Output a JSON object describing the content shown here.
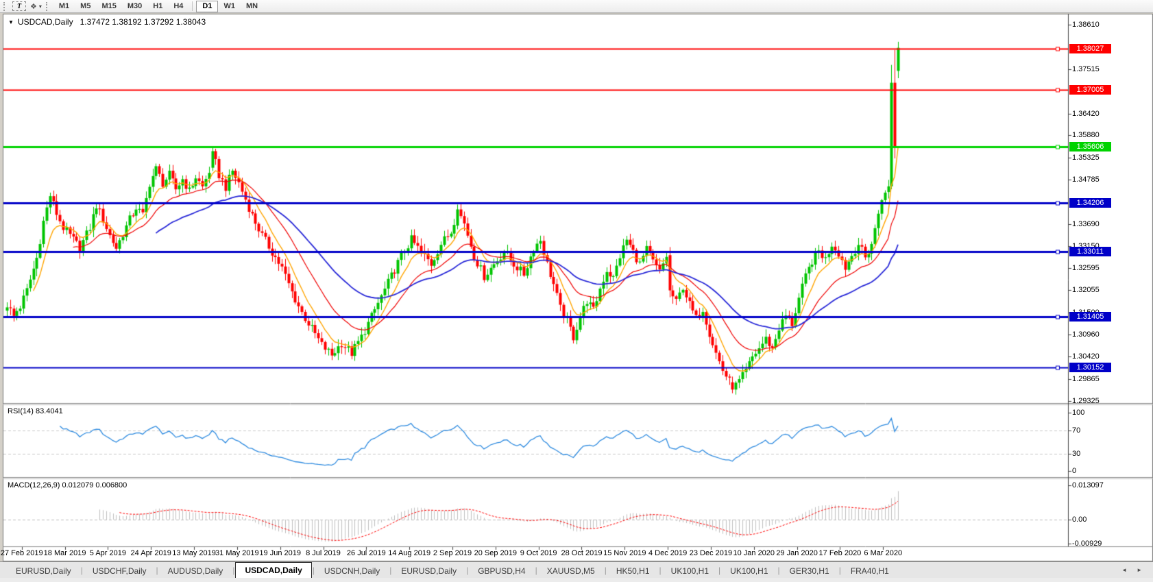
{
  "toolbar": {
    "text_tool": "T",
    "style_tool_icon": "❖",
    "style_tool_caret": "▾",
    "timeframes": [
      "M1",
      "M5",
      "M15",
      "M30",
      "H1",
      "H4",
      "|",
      "D1",
      "W1",
      "MN"
    ],
    "active_timeframe": "D1"
  },
  "window": {
    "menu_icon": "▼",
    "title_symbol": "USDCAD,Daily",
    "title_ohlc": "1.37472 1.38192 1.37292 1.38043"
  },
  "indicators": {
    "rsi_label": "RSI(14) 83.4041",
    "macd_label": "MACD(12,26,9) 0.012079 0.006800"
  },
  "tabs": {
    "items": [
      "EURUSD,Daily",
      "USDCHF,Daily",
      "AUDUSD,Daily",
      "USDCAD,Daily",
      "USDCNH,Daily",
      "EURUSD,Daily",
      "GBPUSD,H4",
      "XAUUSD,M5",
      "HK50,H1",
      "UK100,H1",
      "UK100,H1",
      "GER30,H1",
      "FRA40,H1"
    ],
    "active_index": 3,
    "scroll_left_icon": "◄",
    "scroll_right_icon": "►"
  },
  "chart_data": {
    "type": "candlestick",
    "symbol": "USDCAD",
    "period": "Daily",
    "candles_count": 270,
    "last_candle": {
      "open": 1.37472,
      "high": 1.38192,
      "low": 1.37292,
      "close": 1.38043
    },
    "price_range": [
      1.293,
      1.388
    ],
    "price_axis_ticks": [
      "1.38610",
      "1.37515",
      "1.36420",
      "1.35880",
      "1.35325",
      "1.34785",
      "1.33690",
      "1.33150",
      "1.32595",
      "1.32055",
      "1.31500",
      "1.30960",
      "1.30420",
      "1.29865",
      "1.29325"
    ],
    "levels": [
      {
        "price": 1.38027,
        "label": "1.38027",
        "color": "#FF0000",
        "width": 2
      },
      {
        "price": 1.37005,
        "label": "1.37005",
        "color": "#FF0000",
        "width": 2
      },
      {
        "price": 1.35606,
        "label": "1.35606",
        "color": "#00D300",
        "width": 3
      },
      {
        "price": 1.34206,
        "label": "1.34206",
        "color": "#0000C8",
        "width": 3
      },
      {
        "price": 1.33011,
        "label": "1.33011",
        "color": "#0000C8",
        "width": 3
      },
      {
        "price": 1.31405,
        "label": "1.31405",
        "color": "#0000C8",
        "width": 3
      },
      {
        "price": 1.30152,
        "label": "1.30152",
        "color": "#0000C8",
        "width": 2
      }
    ],
    "date_ticks": [
      "27 Feb 2019",
      "18 Mar 2019",
      "5 Apr 2019",
      "24 Apr 2019",
      "13 May 2019",
      "31 May 2019",
      "19 Jun 2019",
      "8 Jul 2019",
      "26 Jul 2019",
      "14 Aug 2019",
      "2 Sep 2019",
      "20 Sep 2019",
      "9 Oct 2019",
      "28 Oct 2019",
      "15 Nov 2019",
      "4 Dec 2019",
      "23 Dec 2019",
      "10 Jan 2020",
      "29 Jan 2020",
      "17 Feb 2020",
      "6 Mar 2020"
    ],
    "close_anchors": [
      [
        0,
        1.317
      ],
      [
        2,
        1.3145
      ],
      [
        4,
        1.3165
      ],
      [
        6,
        1.3205
      ],
      [
        9,
        1.3285
      ],
      [
        10,
        1.333
      ],
      [
        11,
        1.3375
      ],
      [
        13,
        1.344
      ],
      [
        15,
        1.3395
      ],
      [
        17,
        1.336
      ],
      [
        19,
        1.334
      ],
      [
        22,
        1.331
      ],
      [
        25,
        1.336
      ],
      [
        27,
        1.3415
      ],
      [
        29,
        1.338
      ],
      [
        31,
        1.334
      ],
      [
        33,
        1.331
      ],
      [
        35,
        1.3345
      ],
      [
        37,
        1.338
      ],
      [
        39,
        1.341
      ],
      [
        41,
        1.339
      ],
      [
        43,
        1.347
      ],
      [
        45,
        1.3505
      ],
      [
        47,
        1.347
      ],
      [
        49,
        1.349
      ],
      [
        51,
        1.3455
      ],
      [
        53,
        1.348
      ],
      [
        55,
        1.345
      ],
      [
        57,
        1.3485
      ],
      [
        59,
        1.346
      ],
      [
        61,
        1.35
      ],
      [
        62,
        1.3549
      ],
      [
        64,
        1.349
      ],
      [
        66,
        1.346
      ],
      [
        68,
        1.35
      ],
      [
        70,
        1.347
      ],
      [
        72,
        1.343
      ],
      [
        74,
        1.339
      ],
      [
        77,
        1.334
      ],
      [
        80,
        1.33
      ],
      [
        83,
        1.326
      ],
      [
        86,
        1.32
      ],
      [
        89,
        1.315
      ],
      [
        92,
        1.311
      ],
      [
        95,
        1.307
      ],
      [
        98,
        1.3045
      ],
      [
        101,
        1.3075
      ],
      [
        104,
        1.305
      ],
      [
        107,
        1.309
      ],
      [
        110,
        1.314
      ],
      [
        113,
        1.319
      ],
      [
        116,
        1.324
      ],
      [
        119,
        1.329
      ],
      [
        122,
        1.333
      ],
      [
        125,
        1.33
      ],
      [
        128,
        1.327
      ],
      [
        131,
        1.332
      ],
      [
        134,
        1.335
      ],
      [
        136,
        1.3405
      ],
      [
        138,
        1.337
      ],
      [
        141,
        1.329
      ],
      [
        144,
        1.324
      ],
      [
        147,
        1.327
      ],
      [
        150,
        1.33
      ],
      [
        153,
        1.327
      ],
      [
        156,
        1.3245
      ],
      [
        159,
        1.331
      ],
      [
        161,
        1.333
      ],
      [
        163,
        1.327
      ],
      [
        165,
        1.322
      ],
      [
        167,
        1.316
      ],
      [
        169,
        1.313
      ],
      [
        171,
        1.309
      ],
      [
        173,
        1.314
      ],
      [
        175,
        1.318
      ],
      [
        177,
        1.3155
      ],
      [
        179,
        1.321
      ],
      [
        181,
        1.3255
      ],
      [
        183,
        1.3235
      ],
      [
        185,
        1.329
      ],
      [
        187,
        1.333
      ],
      [
        189,
        1.33
      ],
      [
        191,
        1.327
      ],
      [
        193,
        1.3305
      ],
      [
        195,
        1.3275
      ],
      [
        197,
        1.325
      ],
      [
        199,
        1.329
      ],
      [
        200,
        1.3205
      ],
      [
        202,
        1.3175
      ],
      [
        204,
        1.3215
      ],
      [
        206,
        1.317
      ],
      [
        208,
        1.3135
      ],
      [
        210,
        1.316
      ],
      [
        212,
        1.31
      ],
      [
        214,
        1.305
      ],
      [
        216,
        1.3008
      ],
      [
        218,
        1.298
      ],
      [
        219,
        1.296
      ],
      [
        221,
        1.298
      ],
      [
        223,
        1.3005
      ],
      [
        225,
        1.304
      ],
      [
        227,
        1.3062
      ],
      [
        229,
        1.3085
      ],
      [
        231,
        1.3062
      ],
      [
        233,
        1.3112
      ],
      [
        235,
        1.3142
      ],
      [
        237,
        1.3122
      ],
      [
        239,
        1.3185
      ],
      [
        241,
        1.3238
      ],
      [
        243,
        1.3278
      ],
      [
        245,
        1.3302
      ],
      [
        247,
        1.3282
      ],
      [
        249,
        1.332
      ],
      [
        251,
        1.3298
      ],
      [
        253,
        1.3262
      ],
      [
        255,
        1.3292
      ],
      [
        257,
        1.332
      ],
      [
        259,
        1.3285
      ],
      [
        261,
        1.332
      ],
      [
        263,
        1.3395
      ],
      [
        264,
        1.343
      ],
      [
        265,
        1.3445
      ],
      [
        266,
        1.346
      ],
      [
        267,
        1.3718
      ],
      [
        268,
        1.356
      ],
      [
        269,
        1.38043
      ]
    ],
    "candle_overrides": {
      "2": {
        "o": 1.316,
        "h": 1.3168,
        "l": 1.3128,
        "c": 1.3142
      },
      "62": {
        "o": 1.3508,
        "h": 1.3561,
        "l": 1.35,
        "c": 1.3549
      },
      "136": {
        "o": 1.3365,
        "h": 1.3417,
        "l": 1.3356,
        "c": 1.3405
      },
      "200": {
        "o": 1.3292,
        "h": 1.3312,
        "l": 1.3188,
        "c": 1.3205
      },
      "219": {
        "o": 1.2978,
        "h": 1.2992,
        "l": 1.2951,
        "c": 1.296
      },
      "266": {
        "o": 1.3448,
        "h": 1.3478,
        "l": 1.3432,
        "c": 1.3462
      },
      "267": {
        "o": 1.3462,
        "h": 1.3762,
        "l": 1.3455,
        "c": 1.3718
      },
      "268": {
        "o": 1.3718,
        "h": 1.3799,
        "l": 1.3531,
        "c": 1.356
      },
      "269": {
        "o": 1.37472,
        "h": 1.38192,
        "l": 1.37292,
        "c": 1.38043
      }
    },
    "wiggle": 0.0022,
    "candle_up_color": "#00C400",
    "candle_down_color": "#FF0000",
    "moving_averages": [
      {
        "period": 8,
        "color": "#FFA500",
        "width": 1.4
      },
      {
        "period": 20,
        "color": "#F00000",
        "width": 1.2
      },
      {
        "period": 45,
        "color": "#2828D8",
        "width": 1.8
      }
    ],
    "rsi": {
      "period": 14,
      "value": 83.4041,
      "upper": 70,
      "lower": 30,
      "color": "#2E8BE0",
      "axis_ticks": [
        "100",
        "70",
        "30",
        "0"
      ]
    },
    "macd": {
      "fast": 12,
      "slow": 26,
      "signal": 9,
      "macd_value": 0.012079,
      "signal_value": 0.0068,
      "hist_color": "#C0C0C0",
      "signal_color": "#FF0000",
      "axis_ticks": [
        "0.013097",
        "0.00",
        "-0.00929"
      ]
    }
  }
}
